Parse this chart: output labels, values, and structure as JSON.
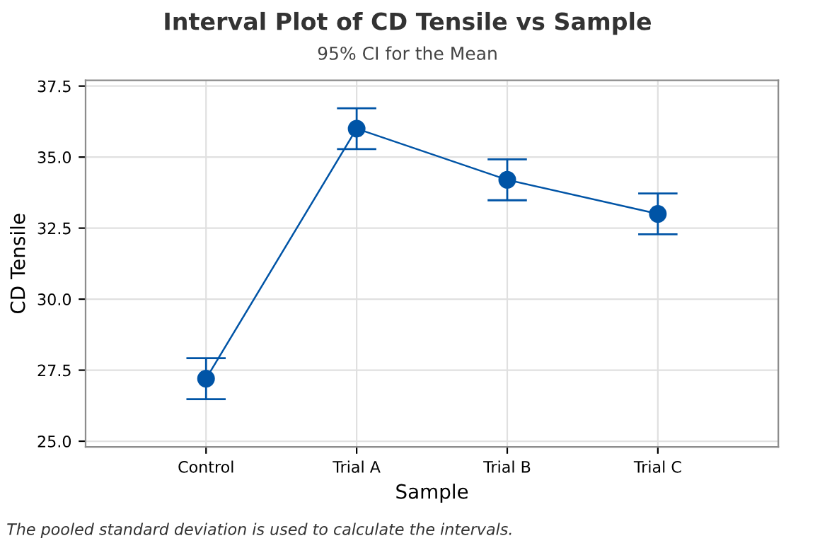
{
  "chart_data": {
    "type": "line",
    "title": "Interval Plot of CD Tensile vs Sample",
    "subtitle": "95% CI for the Mean",
    "xlabel": "Sample",
    "ylabel": "CD Tensile",
    "categories": [
      "Control",
      "Trial A",
      "Trial B",
      "Trial C"
    ],
    "series": [
      {
        "color": "#0054a6",
        "values": [
          27.2,
          36.0,
          34.2,
          33.0
        ],
        "errors": [
          0.72,
          0.72,
          0.72,
          0.72
        ]
      }
    ],
    "ylim": [
      24.8,
      37.7
    ],
    "yticks": [
      {
        "value": 25,
        "label": "25.0"
      },
      {
        "value": 27.5,
        "label": "27.5"
      },
      {
        "value": 30,
        "label": "30.0"
      },
      {
        "value": 32.5,
        "label": "32.5"
      },
      {
        "value": 35,
        "label": "35.0"
      },
      {
        "value": 37.5,
        "label": "37.5"
      }
    ],
    "grid": true,
    "marker": "circle",
    "line_style": "solid",
    "annotations": [
      "The pooled standard deviation is used to calculate the intervals."
    ]
  }
}
